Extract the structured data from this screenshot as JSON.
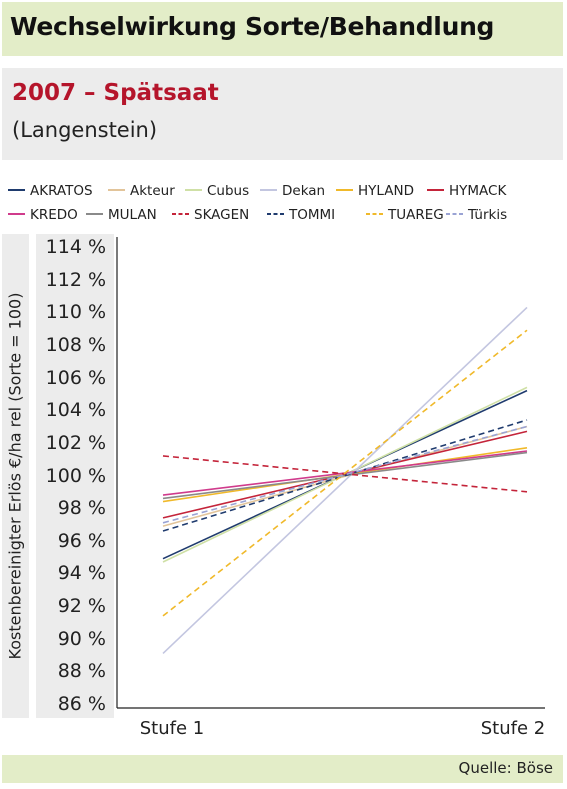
{
  "header": {
    "title": "Wechselwirkung Sorte/Behandlung",
    "subtitle": "2007 – Spätsaat",
    "location": "(Langenstein)"
  },
  "source": "Quelle: Böse",
  "chart_data": {
    "type": "line",
    "title": "Wechselwirkung Sorte/Behandlung",
    "subtitle": "2007 – Spätsaat (Langenstein)",
    "xlabel": "",
    "ylabel": "Kostenbereinigter Erlös €/ha rel (Sorte = 100)",
    "categories": [
      "Stufe 1",
      "Stufe 2"
    ],
    "ylim": [
      86,
      114
    ],
    "yticks": [
      86,
      88,
      90,
      92,
      94,
      96,
      98,
      100,
      102,
      104,
      106,
      108,
      110,
      112,
      114
    ],
    "ytick_suffix": " %",
    "grid": false,
    "legend_position": "top",
    "series": [
      {
        "name": "AKRATOS",
        "values": [
          94.9,
          105.2
        ],
        "color": "#1f3b6e",
        "dash": false
      },
      {
        "name": "Akteur",
        "values": [
          96.9,
          103.0
        ],
        "color": "#e2c49a",
        "dash": false
      },
      {
        "name": "Cubus",
        "values": [
          94.7,
          105.4
        ],
        "color": "#cfe0a6",
        "dash": false
      },
      {
        "name": "Dekan",
        "values": [
          89.1,
          110.3
        ],
        "color": "#c3c6e0",
        "dash": false
      },
      {
        "name": "HYLAND",
        "values": [
          98.4,
          101.7
        ],
        "color": "#f0b92a",
        "dash": false
      },
      {
        "name": "HYMACK",
        "values": [
          97.4,
          102.7
        ],
        "color": "#c4243a",
        "dash": false
      },
      {
        "name": "KREDO",
        "values": [
          98.8,
          101.5
        ],
        "color": "#d03b8c",
        "dash": false
      },
      {
        "name": "MULAN",
        "values": [
          98.6,
          101.4
        ],
        "color": "#8a8a8a",
        "dash": false
      },
      {
        "name": "SKAGEN",
        "values": [
          101.2,
          99.0
        ],
        "color": "#c4243a",
        "dash": true
      },
      {
        "name": "TOMMI",
        "values": [
          96.6,
          103.4
        ],
        "color": "#1f3b6e",
        "dash": true
      },
      {
        "name": "TUAREG",
        "values": [
          91.4,
          108.9
        ],
        "color": "#f0b92a",
        "dash": true
      },
      {
        "name": "Türkis",
        "values": [
          97.1,
          103.0
        ],
        "color": "#9aa3d4",
        "dash": true
      }
    ]
  }
}
